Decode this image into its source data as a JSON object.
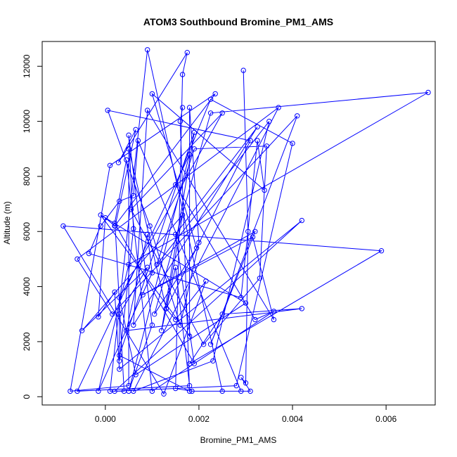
{
  "chart_data": {
    "type": "line",
    "title": "ATOM3 Southbound Bromine_PM1_AMS",
    "xlabel": "Bromine_PM1_AMS",
    "ylabel": "Altitude (m)",
    "xlim": [
      -0.00135,
      0.00705
    ],
    "ylim": [
      -300,
      12900
    ],
    "x_ticks": [
      0.0,
      0.002,
      0.004,
      0.006
    ],
    "x_tick_labels": [
      "0.000",
      "0.002",
      "0.004",
      "0.006"
    ],
    "y_ticks": [
      0,
      2000,
      4000,
      6000,
      8000,
      10000,
      12000
    ],
    "y_tick_labels": [
      "0",
      "2000",
      "4000",
      "6000",
      "8000",
      "10000",
      "12000"
    ],
    "grid": false,
    "legend": "none",
    "marker": "open-circle",
    "color": "#0000ff",
    "series": [
      {
        "x": [
          0.00295,
          0.00305,
          0.003,
          0.0029,
          0.0031,
          0.00185,
          0.0015,
          0.00165,
          0.00175,
          0.00028,
          0.00065,
          0.00021,
          0.0004,
          0.0001,
          0.0009,
          0.0025,
          0.0029,
          0.0007,
          0.0006,
          0.0003,
          -0.0001,
          -0.00035,
          0.0029,
          0.00325,
          0.0034,
          0.001,
          0.00195,
          0.00105,
          0.00225,
          0.0069,
          0.0005,
          -0.00015,
          0.001,
          0.0009,
          0.00045,
          0.0042,
          0.0025,
          0.0018,
          0.0059,
          -0.0009,
          0.00125,
          0.00215,
          0.0015,
          0.0013,
          0.0031,
          5e-05,
          0.00095,
          0.0016,
          0.002,
          0.0018,
          0.0018,
          -0.0001,
          0.003,
          0.00065,
          0.0003,
          0.0025,
          0.00055,
          0.0021,
          0.0033,
          0.00345,
          0.0019,
          0.0011,
          0.0035,
          0.0023,
          0.0006,
          0.0037,
          -0.0006,
          0.00015,
          0.0041,
          0.00225,
          0.0032,
          0.0008,
          0.00315,
          0.0036,
          0.0009,
          0.0006,
          0.00325,
          0.0015,
          0.0019,
          0.0002,
          0.00045,
          0.001,
          0.0036,
          0.0032,
          0.0015,
          0.00225,
          0.004,
          0.0028,
          0.0002,
          0.0042,
          0.0003,
          0.0002,
          -0.00015,
          0.0,
          0.0002,
          0.00235,
          0.0001,
          -0.00075,
          0.0005,
          0.0005,
          0.0013,
          0.00165,
          -0.0005,
          0.0009,
          0.0003,
          0.0003,
          0.0006,
          0.0005,
          0.001,
          0.0005,
          0.0018,
          -0.0006,
          0.0018,
          0.0015,
          0.0012,
          0.0019,
          0.0003,
          0.0018,
          0.0016,
          0.00165
        ],
        "y": [
          11850,
          6000,
          500,
          700,
          200,
          200,
          300,
          11700,
          12500,
          8500,
          9700,
          6200,
          200,
          200,
          12600,
          200,
          200,
          9300,
          7300,
          7100,
          6200,
          5200,
          3600,
          9300,
          7500,
          11000,
          5400,
          3000,
          10300,
          11050,
          4800,
          200,
          4500,
          5900,
          2400,
          3200,
          3000,
          1200,
          5300,
          6200,
          100,
          4200,
          2800,
          3200,
          9300,
          10400,
          6200,
          2600,
          5600,
          10500,
          2200,
          6600,
          3400,
          800,
          3600,
          10300,
          6800,
          1900,
          4300,
          9100,
          9000,
          4800,
          10000,
          1300,
          200,
          10500,
          5000,
          3000,
          10200,
          1900,
          6000,
          3700,
          5800,
          2800,
          10400,
          2600,
          9800,
          5900,
          1200,
          6300,
          8600,
          200,
          3100,
          2800,
          7700,
          10800,
          9200,
          400,
          200,
          6400,
          1000,
          3800,
          2900,
          6500,
          6200,
          11000,
          8400,
          200,
          400,
          9000,
          3200,
          6600,
          2400,
          4700,
          3000,
          1300,
          6100,
          9500,
          2600,
          200,
          8800,
          200,
          400,
          4700,
          2400,
          9600,
          1500,
          200,
          10000,
          10500
        ]
      }
    ]
  }
}
